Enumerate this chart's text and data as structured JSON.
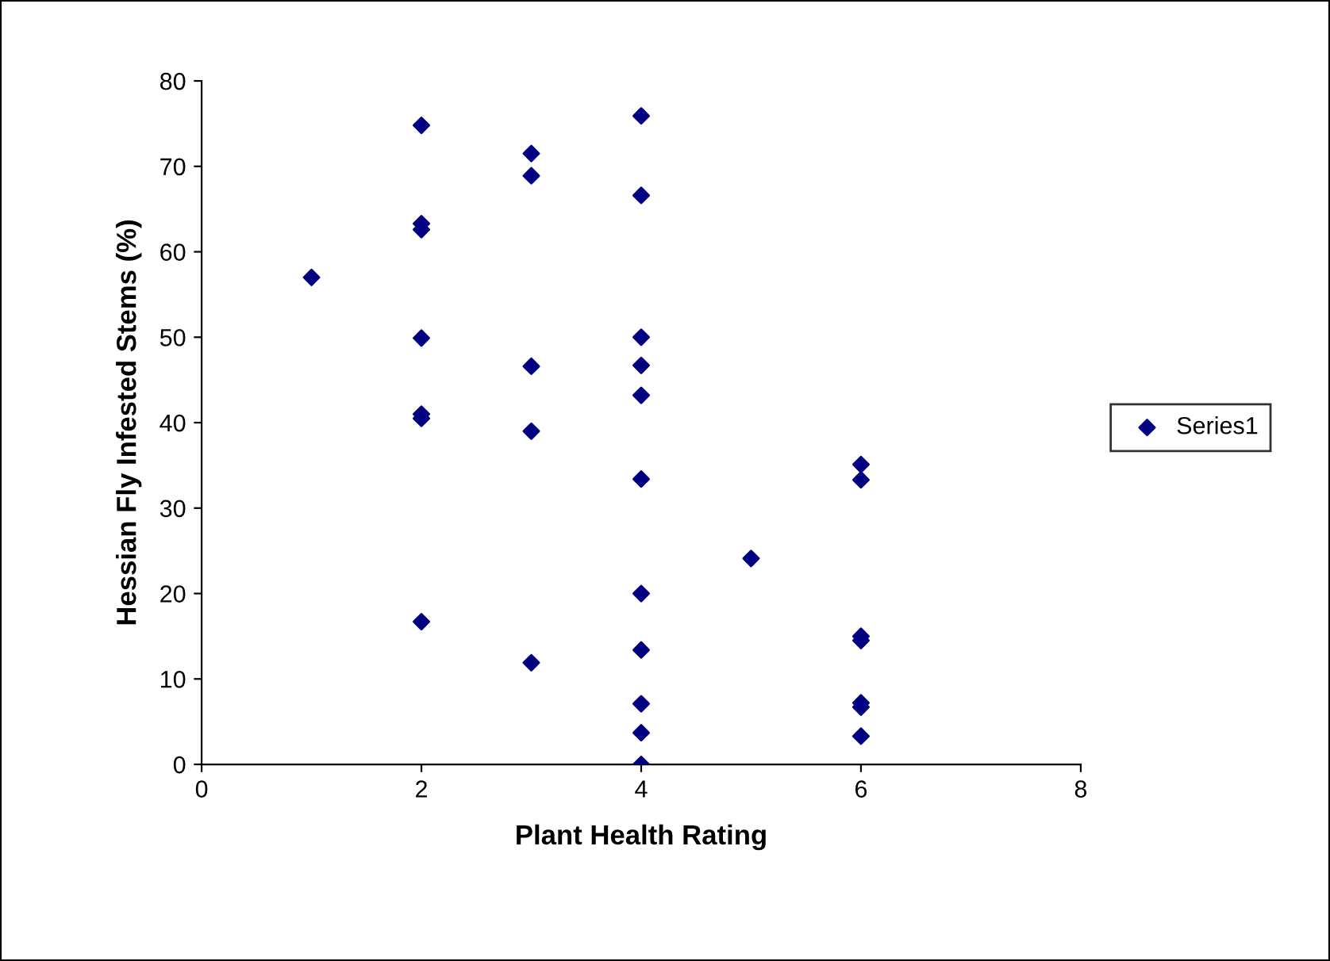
{
  "chart_data": {
    "type": "scatter",
    "xlabel": "Plant Health Rating",
    "ylabel": "Hessian Fly Infested Stems (%)",
    "series": [
      {
        "name": "Series1",
        "color": "#000080",
        "x": [
          1,
          2,
          2,
          2,
          2,
          2,
          2,
          2,
          3,
          3,
          3,
          3,
          3,
          4,
          4,
          4,
          4,
          4,
          4,
          4,
          4,
          4,
          4,
          4,
          5,
          6,
          6,
          6,
          6,
          6,
          6,
          6
        ],
        "values": [
          57,
          74.8,
          63.3,
          62.6,
          49.9,
          41,
          40.5,
          16.7,
          71.5,
          68.9,
          46.6,
          39,
          11.9,
          75.9,
          66.6,
          50,
          46.7,
          43.2,
          33.4,
          20,
          13.4,
          7.1,
          3.7,
          0,
          24.1,
          35.1,
          33.3,
          15,
          14.5,
          7.2,
          6.7,
          3.3
        ]
      }
    ],
    "xlim": [
      0,
      8
    ],
    "xticks": [
      0,
      2,
      4,
      6,
      8
    ],
    "ylim": [
      0,
      80
    ],
    "yticks": [
      0,
      10,
      20,
      30,
      40,
      50,
      60,
      70,
      80
    ],
    "marker": "diamond",
    "legend": "right",
    "grid": false
  }
}
